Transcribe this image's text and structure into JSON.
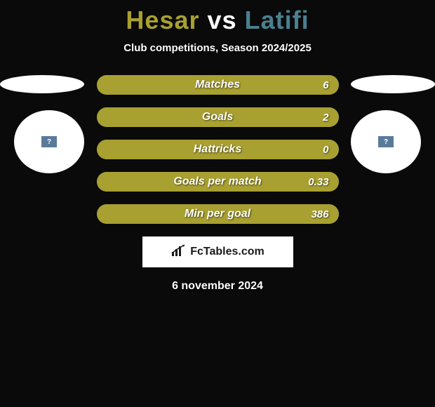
{
  "title": {
    "player1": "Hesar",
    "vs": "vs",
    "player2": "Latifi",
    "player1_color": "#a8a030",
    "vs_color": "#ffffff",
    "player2_color": "#4a8090"
  },
  "subtitle": "Club competitions, Season 2024/2025",
  "stats": {
    "rows": [
      {
        "label": "Matches",
        "value": "6",
        "fill_pct": 100,
        "fill_color": "#a8a030",
        "bg_color": "#4a8090"
      },
      {
        "label": "Goals",
        "value": "2",
        "fill_pct": 100,
        "fill_color": "#a8a030",
        "bg_color": "#4a8090"
      },
      {
        "label": "Hattricks",
        "value": "0",
        "fill_pct": 100,
        "fill_color": "#a8a030",
        "bg_color": "#4a8090"
      },
      {
        "label": "Goals per match",
        "value": "0.33",
        "fill_pct": 100,
        "fill_color": "#a8a030",
        "bg_color": "#4a8090"
      },
      {
        "label": "Min per goal",
        "value": "386",
        "fill_pct": 100,
        "fill_color": "#a8a030",
        "bg_color": "#4a8090"
      }
    ]
  },
  "logo": {
    "text": "FcTables.com"
  },
  "date": "6 november 2024",
  "badge_text": "?",
  "colors": {
    "background": "#0a0a0a",
    "avatar_bg": "#ffffff",
    "badge_bg": "#5a7a9a",
    "text_white": "#ffffff"
  }
}
